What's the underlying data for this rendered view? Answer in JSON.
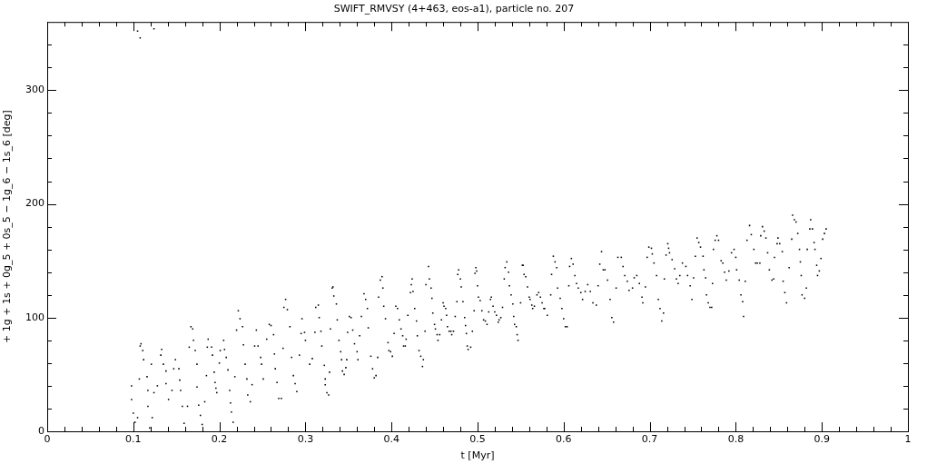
{
  "chart_data": {
    "type": "scatter",
    "title": "SWIFT_RMVSY (4+463, eos-a1), particle no. 207",
    "xlabel": "t [Myr]",
    "ylabel": "+ 1g + 1s + 0g_5 + 0s_5 − 1g_6 − 1s_6 [deg]",
    "xlim": [
      0,
      1
    ],
    "ylim": [
      0,
      360
    ],
    "xticks": [
      0,
      {
        "value": 0.02,
        "label": null
      },
      {
        "value": 0.04,
        "label": null
      },
      {
        "value": 0.06,
        "label": null
      },
      {
        "value": 0.08,
        "label": null
      },
      0.1,
      {
        "value": 0.12,
        "label": null
      },
      {
        "value": 0.14,
        "label": null
      },
      {
        "value": 0.16,
        "label": null
      },
      {
        "value": 0.18,
        "label": null
      },
      0.2,
      {
        "value": 0.22,
        "label": null
      },
      {
        "value": 0.24,
        "label": null
      },
      {
        "value": 0.26,
        "label": null
      },
      {
        "value": 0.28,
        "label": null
      },
      0.3,
      {
        "value": 0.32,
        "label": null
      },
      {
        "value": 0.34,
        "label": null
      },
      {
        "value": 0.36,
        "label": null
      },
      {
        "value": 0.38,
        "label": null
      },
      0.4,
      {
        "value": 0.42,
        "label": null
      },
      {
        "value": 0.44,
        "label": null
      },
      {
        "value": 0.46,
        "label": null
      },
      {
        "value": 0.48,
        "label": null
      },
      0.5,
      {
        "value": 0.52,
        "label": null
      },
      {
        "value": 0.54,
        "label": null
      },
      {
        "value": 0.56,
        "label": null
      },
      {
        "value": 0.58,
        "label": null
      },
      0.6,
      {
        "value": 0.62,
        "label": null
      },
      {
        "value": 0.64,
        "label": null
      },
      {
        "value": 0.66,
        "label": null
      },
      {
        "value": 0.68,
        "label": null
      },
      0.7,
      {
        "value": 0.72,
        "label": null
      },
      {
        "value": 0.74,
        "label": null
      },
      {
        "value": 0.76,
        "label": null
      },
      {
        "value": 0.78,
        "label": null
      },
      0.8,
      {
        "value": 0.82,
        "label": null
      },
      {
        "value": 0.84,
        "label": null
      },
      {
        "value": 0.86,
        "label": null
      },
      {
        "value": 0.88,
        "label": null
      },
      0.9,
      {
        "value": 0.92,
        "label": null
      },
      {
        "value": 0.94,
        "label": null
      },
      {
        "value": 0.96,
        "label": null
      },
      {
        "value": 0.98,
        "label": null
      },
      1
    ],
    "yticks": [
      0,
      {
        "value": 20,
        "label": null
      },
      {
        "value": 40,
        "label": null
      },
      {
        "value": 60,
        "label": null
      },
      {
        "value": 80,
        "label": null
      },
      100,
      {
        "value": 120,
        "label": null
      },
      {
        "value": 140,
        "label": null
      },
      {
        "value": 160,
        "label": null
      },
      {
        "value": 180,
        "label": null
      },
      200,
      {
        "value": 220,
        "label": null
      },
      {
        "value": 240,
        "label": null
      },
      {
        "value": 260,
        "label": null
      },
      {
        "value": 280,
        "label": null
      },
      300,
      {
        "value": 320,
        "label": null
      },
      {
        "value": 340,
        "label": null
      }
    ],
    "grid": false,
    "legend": false,
    "marker": "square",
    "series": [
      {
        "color": "#000000",
        "x": [
          0.098,
          0.098,
          0.1,
          0.102,
          0.105,
          0.107,
          0.108,
          0.109,
          0.111,
          0.112,
          0.116,
          0.117,
          0.117,
          0.119,
          0.121,
          0.122,
          0.124,
          0.128,
          0.132,
          0.133,
          0.135,
          0.138,
          0.138,
          0.141,
          0.145,
          0.147,
          0.149,
          0.153,
          0.154,
          0.155,
          0.157,
          0.159,
          0.163,
          0.165,
          0.167,
          0.169,
          0.17,
          0.172,
          0.174,
          0.174,
          0.176,
          0.178,
          0.18,
          0.183,
          0.185,
          0.186,
          0.187,
          0.191,
          0.192,
          0.194,
          0.195,
          0.196,
          0.197,
          0.2,
          0.201,
          0.205,
          0.206,
          0.208,
          0.21,
          0.212,
          0.213,
          0.214,
          0.216,
          0.218,
          0.22,
          0.222,
          0.224,
          0.227,
          0.228,
          0.23,
          0.232,
          0.233,
          0.236,
          0.238,
          0.241,
          0.243,
          0.245,
          0.248,
          0.249,
          0.251,
          0.255,
          0.258,
          0.26,
          0.263,
          0.264,
          0.265,
          0.267,
          0.269,
          0.272,
          0.274,
          0.275,
          0.277,
          0.279,
          0.282,
          0.284,
          0.286,
          0.288,
          0.29,
          0.293,
          0.295,
          0.296,
          0.299,
          0.3,
          0.305,
          0.308,
          0.311,
          0.312,
          0.315,
          0.316,
          0.318,
          0.319,
          0.322,
          0.323,
          0.323,
          0.325,
          0.327,
          0.328,
          0.329,
          0.331,
          0.332,
          0.333,
          0.336,
          0.337,
          0.339,
          0.341,
          0.342,
          0.343,
          0.345,
          0.347,
          0.348,
          0.349,
          0.351,
          0.353,
          0.355,
          0.357,
          0.36,
          0.361,
          0.363,
          0.365,
          0.368,
          0.37,
          0.372,
          0.373,
          0.376,
          0.378,
          0.38,
          0.382,
          0.384,
          0.385,
          0.387,
          0.389,
          0.39,
          0.391,
          0.393,
          0.396,
          0.397,
          0.399,
          0.401,
          0.403,
          0.405,
          0.407,
          0.409,
          0.411,
          0.413,
          0.414,
          0.416,
          0.417,
          0.419,
          0.422,
          0.423,
          0.424,
          0.425,
          0.427,
          0.429,
          0.43,
          0.432,
          0.434,
          0.436,
          0.437,
          0.439,
          0.44,
          0.443,
          0.444,
          0.446,
          0.447,
          0.448,
          0.45,
          0.451,
          0.453,
          0.454,
          0.456,
          0.458,
          0.46,
          0.461,
          0.463,
          0.464,
          0.465,
          0.467,
          0.469,
          0.47,
          0.472,
          0.474,
          0.476,
          0.477,
          0.478,
          0.48,
          0.481,
          0.483,
          0.485,
          0.486,
          0.487,
          0.488,
          0.489,
          0.492,
          0.494,
          0.496,
          0.497,
          0.498,
          0.499,
          0.5,
          0.501,
          0.503,
          0.505,
          0.507,
          0.509,
          0.511,
          0.513,
          0.515,
          0.516,
          0.518,
          0.52,
          0.522,
          0.524,
          0.525,
          0.527,
          0.529,
          0.531,
          0.532,
          0.534,
          0.536,
          0.537,
          0.539,
          0.541,
          0.542,
          0.543,
          0.545,
          0.546,
          0.547,
          0.55,
          0.552,
          0.553,
          0.554,
          0.556,
          0.558,
          0.56,
          0.561,
          0.563,
          0.564,
          0.566,
          0.569,
          0.571,
          0.573,
          0.575,
          0.577,
          0.578,
          0.581,
          0.585,
          0.586,
          0.588,
          0.59,
          0.592,
          0.593,
          0.596,
          0.598,
          0.6,
          0.602,
          0.604,
          0.606,
          0.607,
          0.609,
          0.611,
          0.613,
          0.615,
          0.617,
          0.62,
          0.622,
          0.625,
          0.628,
          0.631,
          0.634,
          0.638,
          0.64,
          0.642,
          0.644,
          0.646,
          0.648,
          0.651,
          0.654,
          0.656,
          0.658,
          0.661,
          0.663,
          0.667,
          0.669,
          0.671,
          0.674,
          0.676,
          0.68,
          0.682,
          0.685,
          0.688,
          0.691,
          0.692,
          0.695,
          0.697,
          0.699,
          0.702,
          0.703,
          0.705,
          0.708,
          0.71,
          0.712,
          0.714,
          0.716,
          0.717,
          0.719,
          0.721,
          0.722,
          0.723,
          0.726,
          0.729,
          0.731,
          0.733,
          0.735,
          0.738,
          0.742,
          0.744,
          0.747,
          0.749,
          0.751,
          0.753,
          0.755,
          0.757,
          0.759,
          0.762,
          0.763,
          0.765,
          0.766,
          0.768,
          0.77,
          0.772,
          0.773,
          0.774,
          0.776,
          0.778,
          0.78,
          0.783,
          0.785,
          0.787,
          0.789,
          0.792,
          0.795,
          0.798,
          0.8,
          0.801,
          0.804,
          0.806,
          0.808,
          0.809,
          0.811,
          0.813,
          0.816,
          0.818,
          0.821,
          0.823,
          0.825,
          0.828,
          0.829,
          0.831,
          0.833,
          0.835,
          0.837,
          0.839,
          0.842,
          0.844,
          0.845,
          0.848,
          0.849,
          0.851,
          0.854,
          0.855,
          0.857,
          0.859,
          0.862,
          0.865,
          0.866,
          0.868,
          0.87,
          0.872,
          0.874,
          0.875,
          0.876,
          0.877,
          0.88,
          0.882,
          0.883,
          0.886,
          0.887,
          0.889,
          0.891,
          0.892,
          0.894,
          0.895,
          0.897,
          0.899,
          0.901,
          0.903,
          0.905,
          0.105,
          0.108,
          0.124
        ],
        "values": [
          40,
          28,
          16,
          8,
          12,
          46,
          75,
          77,
          71,
          63,
          48,
          36,
          22,
          3,
          59,
          12,
          34,
          40,
          67,
          72,
          59,
          53,
          42,
          28,
          36,
          55,
          63,
          55,
          45,
          36,
          22,
          7,
          22,
          74,
          92,
          90,
          80,
          71,
          59,
          39,
          23,
          14,
          6,
          26,
          49,
          74,
          81,
          74,
          67,
          52,
          43,
          38,
          34,
          60,
          71,
          80,
          72,
          65,
          54,
          36,
          25,
          17,
          8,
          48,
          89,
          106,
          99,
          92,
          76,
          59,
          46,
          32,
          26,
          41,
          75,
          89,
          75,
          65,
          59,
          46,
          81,
          94,
          93,
          85,
          68,
          55,
          43,
          29,
          29,
          73,
          109,
          116,
          107,
          92,
          65,
          49,
          42,
          35,
          67,
          86,
          99,
          87,
          80,
          59,
          64,
          87,
          109,
          111,
          100,
          88,
          75,
          58,
          46,
          41,
          34,
          32,
          52,
          90,
          126,
          127,
          119,
          112,
          98,
          80,
          70,
          63,
          53,
          50,
          56,
          63,
          87,
          101,
          100,
          89,
          77,
          70,
          63,
          84,
          101,
          121,
          116,
          108,
          91,
          66,
          55,
          47,
          49,
          65,
          118,
          133,
          136,
          126,
          110,
          99,
          78,
          71,
          70,
          66,
          86,
          110,
          108,
          98,
          90,
          84,
          75,
          75,
          81,
          102,
          122,
          129,
          134,
          123,
          108,
          97,
          84,
          71,
          66,
          57,
          63,
          88,
          129,
          145,
          134,
          126,
          117,
          104,
          94,
          90,
          85,
          80,
          85,
          98,
          113,
          110,
          108,
          102,
          92,
          88,
          88,
          85,
          88,
          101,
          114,
          138,
          142,
          134,
          127,
          114,
          100,
          93,
          86,
          75,
          72,
          74,
          88,
          106,
          139,
          144,
          141,
          128,
          118,
          115,
          106,
          98,
          97,
          94,
          105,
          116,
          118,
          110,
          105,
          102,
          96,
          98,
          100,
          109,
          134,
          144,
          149,
          140,
          128,
          120,
          112,
          101,
          94,
          92,
          85,
          80,
          113,
          146,
          146,
          138,
          136,
          127,
          118,
          116,
          111,
          108,
          110,
          120,
          122,
          118,
          113,
          108,
          108,
          102,
          120,
          138,
          154,
          149,
          144,
          126,
          117,
          108,
          99,
          92,
          92,
          128,
          145,
          152,
          147,
          137,
          130,
          126,
          122,
          116,
          123,
          129,
          123,
          113,
          111,
          128,
          147,
          158,
          142,
          142,
          133,
          116,
          100,
          96,
          126,
          153,
          153,
          145,
          137,
          132,
          124,
          126,
          135,
          137,
          130,
          118,
          113,
          127,
          153,
          162,
          161,
          156,
          148,
          137,
          116,
          108,
          97,
          104,
          134,
          155,
          165,
          161,
          157,
          151,
          143,
          134,
          130,
          137,
          148,
          145,
          137,
          128,
          116,
          135,
          154,
          170,
          166,
          162,
          154,
          142,
          135,
          120,
          113,
          109,
          109,
          130,
          160,
          168,
          172,
          168,
          150,
          148,
          140,
          133,
          141,
          157,
          160,
          153,
          142,
          133,
          120,
          114,
          101,
          132,
          168,
          181,
          173,
          160,
          148,
          148,
          148,
          172,
          180,
          176,
          170,
          157,
          142,
          133,
          134,
          153,
          165,
          170,
          165,
          158,
          132,
          122,
          113,
          144,
          169,
          190,
          186,
          184,
          174,
          160,
          149,
          137,
          120,
          117,
          126,
          160,
          178,
          186,
          178,
          166,
          160,
          146,
          137,
          141,
          152,
          169,
          174,
          178,
          352,
          346,
          354
        ]
      }
    ]
  }
}
